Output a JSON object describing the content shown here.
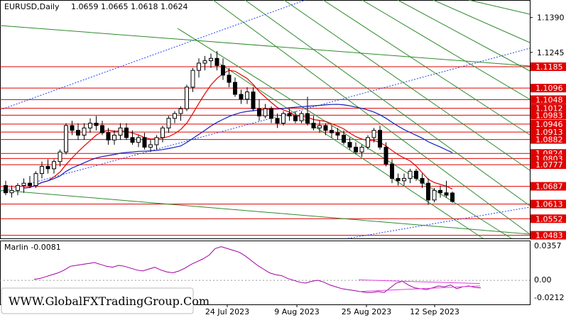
{
  "header": {
    "symbol": "EURUSD,Daily",
    "ohlc": "1.0659 1.0665 1.0618 1.0624"
  },
  "oscillator": {
    "label": "Marlin -0.0081",
    "scale": [
      "0.0357",
      "0.00",
      "-0.0212"
    ]
  },
  "watermark": "WWW.GlobalFXTradingGroup.Com",
  "colors": {
    "candle": "#000000",
    "level_line": "#e00000",
    "green_channel": "#2e8b2e",
    "blue_dotted": "#2040ff",
    "ma_red": "#e00000",
    "ma_blue": "#1020c0",
    "marlin": "#a000a0",
    "marlin_trend": "#e040e0"
  },
  "chart_data": {
    "type": "candlestick",
    "symbol": "EURUSD",
    "timeframe": "Daily",
    "x_labels": [
      "24 Jul 2023",
      "9 Aug 2023",
      "25 Aug 2023",
      "12 Sep 2023"
    ],
    "y_ticks": [
      "1.1390",
      "1.1245"
    ],
    "ylim": [
      1.047,
      1.146
    ],
    "levels": [
      1.1185,
      1.1096,
      1.1048,
      1.1012,
      1.0983,
      1.0946,
      1.0913,
      1.0882,
      1.0824,
      1.0803,
      1.0777,
      1.0687,
      1.0613,
      1.0552,
      1.0483
    ],
    "level_labels": [
      "1.1185",
      "1.1096",
      "1.1048",
      "1.1012",
      "1.0983",
      "1.0946",
      "1.0913",
      "1.0882",
      "1.0824",
      "1.0803",
      "1.0777",
      "1.0687",
      "1.0613",
      "1.0552",
      "1.0483"
    ],
    "candles": [
      [
        1.069,
        1.071,
        1.065,
        1.066
      ],
      [
        1.066,
        1.069,
        1.064,
        1.067
      ],
      [
        1.067,
        1.07,
        1.065,
        1.069
      ],
      [
        1.069,
        1.072,
        1.066,
        1.07
      ],
      [
        1.07,
        1.073,
        1.068,
        1.069
      ],
      [
        1.069,
        1.075,
        1.068,
        1.074
      ],
      [
        1.074,
        1.079,
        1.072,
        1.077
      ],
      [
        1.077,
        1.08,
        1.074,
        1.076
      ],
      [
        1.076,
        1.08,
        1.074,
        1.079
      ],
      [
        1.079,
        1.084,
        1.077,
        1.083
      ],
      [
        1.083,
        1.095,
        1.082,
        1.094
      ],
      [
        1.094,
        1.096,
        1.09,
        1.092
      ],
      [
        1.092,
        1.095,
        1.088,
        1.09
      ],
      [
        1.09,
        1.095,
        1.088,
        1.093
      ],
      [
        1.093,
        1.097,
        1.091,
        1.095
      ],
      [
        1.095,
        1.098,
        1.092,
        1.094
      ],
      [
        1.094,
        1.096,
        1.09,
        1.091
      ],
      [
        1.091,
        1.093,
        1.086,
        1.088
      ],
      [
        1.088,
        1.092,
        1.086,
        1.09
      ],
      [
        1.09,
        1.095,
        1.088,
        1.093
      ],
      [
        1.093,
        1.095,
        1.088,
        1.089
      ],
      [
        1.089,
        1.092,
        1.086,
        1.087
      ],
      [
        1.087,
        1.09,
        1.085,
        1.089
      ],
      [
        1.089,
        1.091,
        1.084,
        1.085
      ],
      [
        1.085,
        1.088,
        1.083,
        1.086
      ],
      [
        1.086,
        1.09,
        1.084,
        1.089
      ],
      [
        1.089,
        1.094,
        1.087,
        1.093
      ],
      [
        1.093,
        1.098,
        1.091,
        1.097
      ],
      [
        1.097,
        1.1,
        1.095,
        1.099
      ],
      [
        1.099,
        1.102,
        1.096,
        1.101
      ],
      [
        1.101,
        1.111,
        1.1,
        1.11
      ],
      [
        1.11,
        1.118,
        1.108,
        1.117
      ],
      [
        1.117,
        1.122,
        1.114,
        1.12
      ],
      [
        1.12,
        1.123,
        1.117,
        1.121
      ],
      [
        1.121,
        1.124,
        1.118,
        1.122
      ],
      [
        1.122,
        1.125,
        1.117,
        1.119
      ],
      [
        1.119,
        1.122,
        1.113,
        1.115
      ],
      [
        1.115,
        1.118,
        1.11,
        1.112
      ],
      [
        1.112,
        1.114,
        1.106,
        1.107
      ],
      [
        1.107,
        1.109,
        1.103,
        1.105
      ],
      [
        1.105,
        1.11,
        1.103,
        1.108
      ],
      [
        1.108,
        1.11,
        1.1,
        1.101
      ],
      [
        1.101,
        1.105,
        1.096,
        1.098
      ],
      [
        1.098,
        1.103,
        1.097,
        1.101
      ],
      [
        1.101,
        1.102,
        1.095,
        1.097
      ],
      [
        1.097,
        1.099,
        1.093,
        1.095
      ],
      [
        1.095,
        1.1,
        1.094,
        1.099
      ],
      [
        1.099,
        1.101,
        1.096,
        1.098
      ],
      [
        1.098,
        1.1,
        1.095,
        1.096
      ],
      [
        1.096,
        1.1,
        1.095,
        1.099
      ],
      [
        1.099,
        1.106,
        1.094,
        1.095
      ],
      [
        1.095,
        1.098,
        1.092,
        1.093
      ],
      [
        1.093,
        1.096,
        1.091,
        1.094
      ],
      [
        1.094,
        1.095,
        1.09,
        1.092
      ],
      [
        1.092,
        1.094,
        1.089,
        1.091
      ],
      [
        1.091,
        1.093,
        1.088,
        1.09
      ],
      [
        1.09,
        1.092,
        1.086,
        1.087
      ],
      [
        1.087,
        1.089,
        1.084,
        1.085
      ],
      [
        1.085,
        1.087,
        1.082,
        1.083
      ],
      [
        1.083,
        1.086,
        1.081,
        1.085
      ],
      [
        1.085,
        1.09,
        1.084,
        1.089
      ],
      [
        1.089,
        1.093,
        1.087,
        1.092
      ],
      [
        1.092,
        1.094,
        1.084,
        1.085
      ],
      [
        1.085,
        1.087,
        1.077,
        1.078
      ],
      [
        1.078,
        1.08,
        1.07,
        1.072
      ],
      [
        1.072,
        1.074,
        1.069,
        1.071
      ],
      [
        1.071,
        1.074,
        1.069,
        1.072
      ],
      [
        1.072,
        1.076,
        1.07,
        1.075
      ],
      [
        1.075,
        1.076,
        1.071,
        1.072
      ],
      [
        1.072,
        1.074,
        1.068,
        1.07
      ],
      [
        1.07,
        1.072,
        1.061,
        1.063
      ],
      [
        1.063,
        1.068,
        1.062,
        1.067
      ],
      [
        1.067,
        1.069,
        1.064,
        1.066
      ],
      [
        1.066,
        1.071,
        1.064,
        1.065
      ],
      [
        1.0659,
        1.0665,
        1.0618,
        1.0624
      ]
    ],
    "marlin": [
      0.001,
      0.002,
      0.004,
      0.006,
      0.008,
      0.011,
      0.015,
      0.016,
      0.017,
      0.018,
      0.019,
      0.017,
      0.015,
      0.014,
      0.016,
      0.015,
      0.013,
      0.011,
      0.01,
      0.012,
      0.014,
      0.011,
      0.009,
      0.008,
      0.01,
      0.013,
      0.017,
      0.02,
      0.023,
      0.027,
      0.034,
      0.036,
      0.034,
      0.032,
      0.03,
      0.026,
      0.021,
      0.016,
      0.012,
      0.008,
      0.006,
      0.005,
      0.002,
      0.0,
      -0.002,
      -0.003,
      -0.001,
      0.0,
      -0.002,
      -0.005,
      -0.007,
      -0.009,
      -0.01,
      -0.011,
      -0.012,
      -0.013,
      -0.013,
      -0.012,
      -0.013,
      -0.008,
      -0.003,
      -0.001,
      -0.005,
      -0.008,
      -0.009,
      -0.01,
      -0.008,
      -0.006,
      -0.007,
      -0.005,
      -0.009,
      -0.007,
      -0.006,
      -0.0075,
      -0.0081
    ]
  }
}
